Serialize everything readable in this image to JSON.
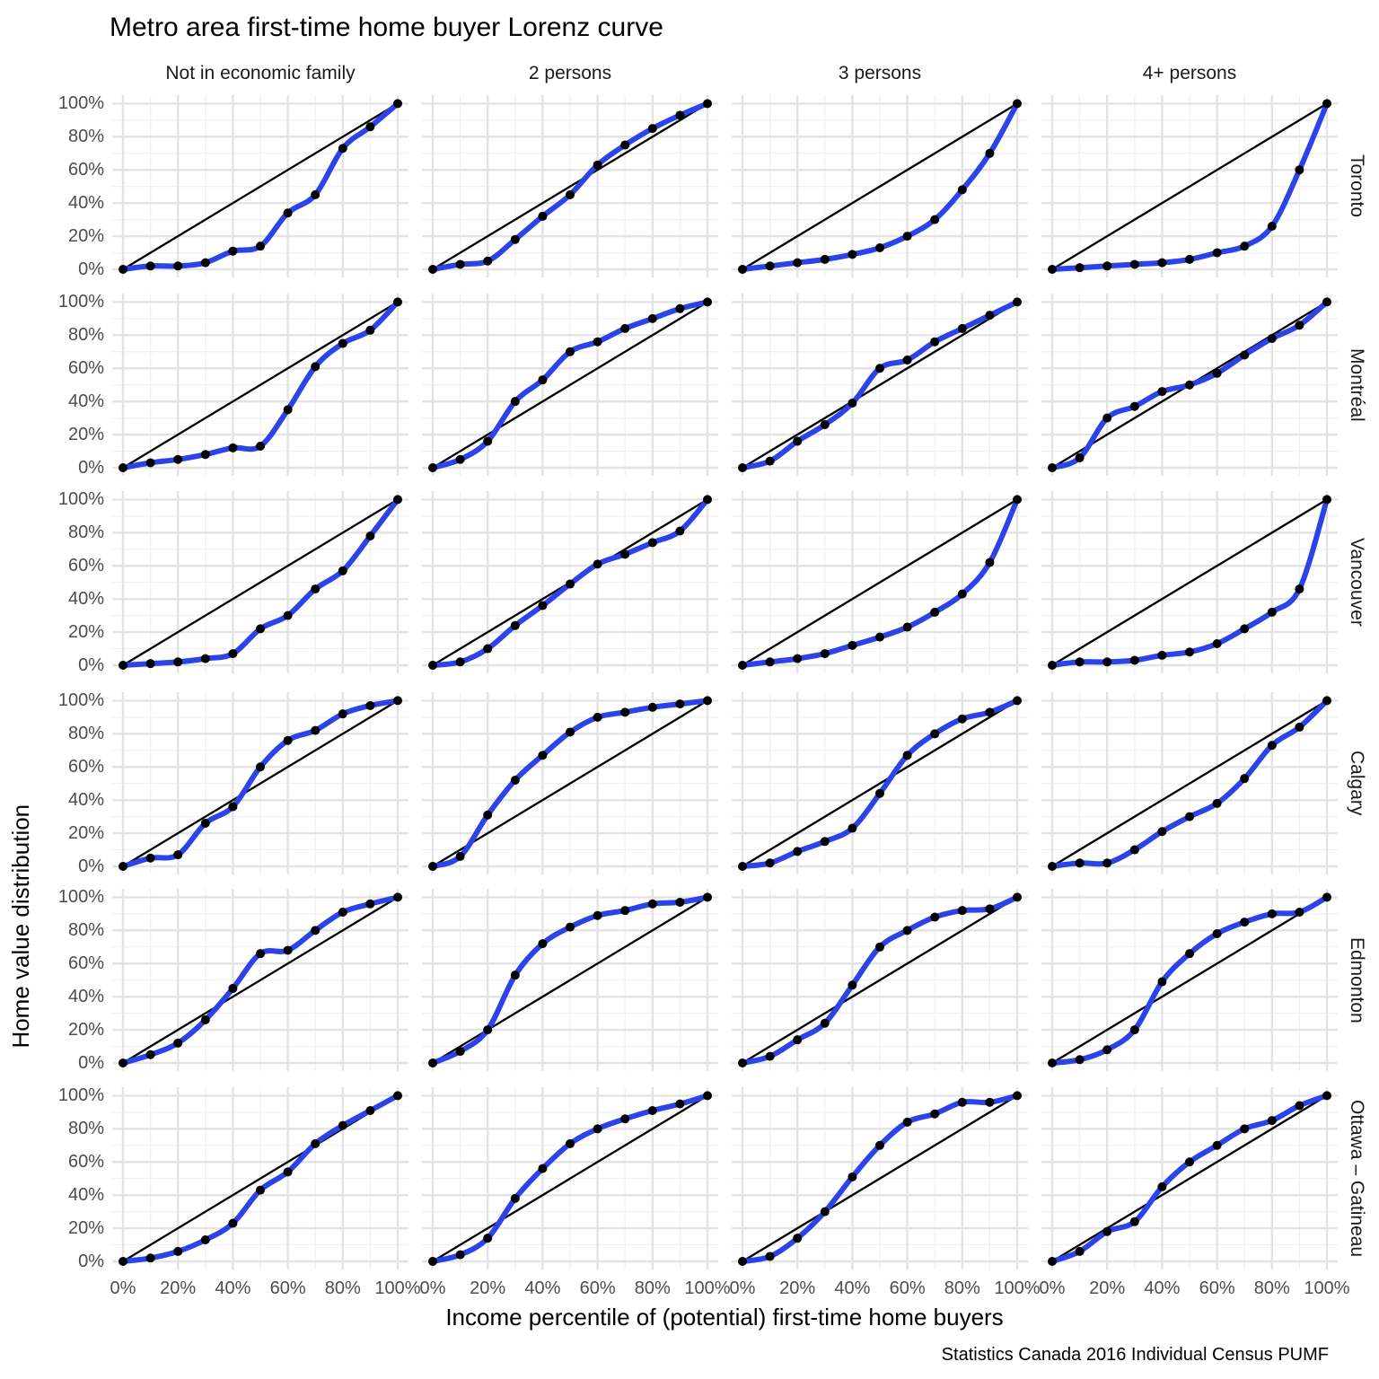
{
  "title": "Metro area first-time home buyer Lorenz curve",
  "caption": "Statistics Canada 2016 Individual Census PUMF",
  "x_axis": {
    "title": "Income percentile of (potential) first-time home buyers",
    "ticks": [
      "0%",
      "20%",
      "40%",
      "60%",
      "80%",
      "100%"
    ]
  },
  "y_axis": {
    "title": "Home value distribution",
    "ticks": [
      "0%",
      "20%",
      "40%",
      "60%",
      "80%",
      "100%"
    ]
  },
  "facets": {
    "columns": [
      "Not in economic family",
      "2 persons",
      "3 persons",
      "4+ persons"
    ],
    "rows": [
      "Toronto",
      "Montréal",
      "Vancouver",
      "Calgary",
      "Edmonton",
      "Ottawa – Gatineau"
    ]
  },
  "colors": {
    "curve": "#2b43e8",
    "points": "#000000",
    "equality_line": "#000000",
    "grid_major": "#e3e3e3",
    "grid_minor": "#f0f0f0",
    "tick_text": "#4d4d4d"
  },
  "chart_data": {
    "type": "line",
    "x": [
      0,
      10,
      20,
      30,
      40,
      50,
      60,
      70,
      80,
      90,
      100
    ],
    "x_range": [
      0,
      100
    ],
    "y_range": [
      0,
      100
    ],
    "grid": "on",
    "reference_line": "equality diagonal from (0%,0%) to (100%,100%) in every panel",
    "panels": [
      {
        "row": "Toronto",
        "column": "Not in economic family",
        "values": [
          0,
          2,
          2,
          4,
          11,
          14,
          34,
          45,
          73,
          86,
          100
        ]
      },
      {
        "row": "Toronto",
        "column": "2 persons",
        "values": [
          0,
          3,
          5,
          18,
          32,
          45,
          63,
          75,
          85,
          93,
          100
        ]
      },
      {
        "row": "Toronto",
        "column": "3 persons",
        "values": [
          0,
          2,
          4,
          6,
          9,
          13,
          20,
          30,
          48,
          70,
          100
        ]
      },
      {
        "row": "Toronto",
        "column": "4+ persons",
        "values": [
          0,
          1,
          2,
          3,
          4,
          6,
          10,
          14,
          26,
          60,
          100
        ]
      },
      {
        "row": "Montréal",
        "column": "Not in economic family",
        "values": [
          0,
          3,
          5,
          8,
          12,
          13,
          35,
          61,
          75,
          83,
          100
        ]
      },
      {
        "row": "Montréal",
        "column": "2 persons",
        "values": [
          0,
          5,
          16,
          40,
          53,
          70,
          76,
          84,
          90,
          96,
          100
        ]
      },
      {
        "row": "Montréal",
        "column": "3 persons",
        "values": [
          0,
          4,
          16,
          26,
          39,
          60,
          65,
          76,
          84,
          92,
          100
        ]
      },
      {
        "row": "Montréal",
        "column": "4+ persons",
        "values": [
          0,
          6,
          30,
          37,
          46,
          50,
          57,
          68,
          78,
          86,
          100
        ]
      },
      {
        "row": "Vancouver",
        "column": "Not in economic family",
        "values": [
          0,
          1,
          2,
          4,
          7,
          22,
          30,
          46,
          57,
          78,
          100
        ]
      },
      {
        "row": "Vancouver",
        "column": "2 persons",
        "values": [
          0,
          2,
          10,
          24,
          36,
          49,
          61,
          67,
          74,
          81,
          100
        ]
      },
      {
        "row": "Vancouver",
        "column": "3 persons",
        "values": [
          0,
          2,
          4,
          7,
          12,
          17,
          23,
          32,
          43,
          62,
          100
        ]
      },
      {
        "row": "Vancouver",
        "column": "4+ persons",
        "values": [
          0,
          2,
          2,
          3,
          6,
          8,
          13,
          22,
          32,
          46,
          100
        ]
      },
      {
        "row": "Calgary",
        "column": "Not in economic family",
        "values": [
          0,
          5,
          7,
          26,
          36,
          60,
          76,
          82,
          92,
          97,
          100
        ]
      },
      {
        "row": "Calgary",
        "column": "2 persons",
        "values": [
          0,
          6,
          31,
          52,
          67,
          81,
          90,
          93,
          96,
          98,
          100
        ]
      },
      {
        "row": "Calgary",
        "column": "3 persons",
        "values": [
          0,
          2,
          9,
          15,
          23,
          44,
          67,
          80,
          89,
          93,
          100
        ]
      },
      {
        "row": "Calgary",
        "column": "4+ persons",
        "values": [
          0,
          2,
          2,
          10,
          21,
          30,
          38,
          53,
          73,
          84,
          100
        ]
      },
      {
        "row": "Edmonton",
        "column": "Not in economic family",
        "values": [
          0,
          5,
          12,
          26,
          45,
          66,
          68,
          80,
          91,
          96,
          100
        ]
      },
      {
        "row": "Edmonton",
        "column": "2 persons",
        "values": [
          0,
          7,
          20,
          53,
          72,
          82,
          89,
          92,
          96,
          97,
          100
        ]
      },
      {
        "row": "Edmonton",
        "column": "3 persons",
        "values": [
          0,
          4,
          14,
          24,
          47,
          70,
          80,
          88,
          92,
          93,
          100
        ]
      },
      {
        "row": "Edmonton",
        "column": "4+ persons",
        "values": [
          0,
          2,
          8,
          20,
          49,
          66,
          78,
          85,
          90,
          91,
          100
        ]
      },
      {
        "row": "Ottawa – Gatineau",
        "column": "Not in economic family",
        "values": [
          0,
          2,
          6,
          13,
          23,
          43,
          54,
          71,
          82,
          91,
          100
        ]
      },
      {
        "row": "Ottawa – Gatineau",
        "column": "2 persons",
        "values": [
          0,
          4,
          14,
          38,
          56,
          71,
          80,
          86,
          91,
          95,
          100
        ]
      },
      {
        "row": "Ottawa – Gatineau",
        "column": "3 persons",
        "values": [
          0,
          3,
          14,
          30,
          51,
          70,
          84,
          89,
          96,
          96,
          100
        ]
      },
      {
        "row": "Ottawa – Gatineau",
        "column": "4+ persons",
        "values": [
          0,
          6,
          18,
          24,
          45,
          60,
          70,
          80,
          85,
          94,
          100
        ]
      }
    ]
  }
}
